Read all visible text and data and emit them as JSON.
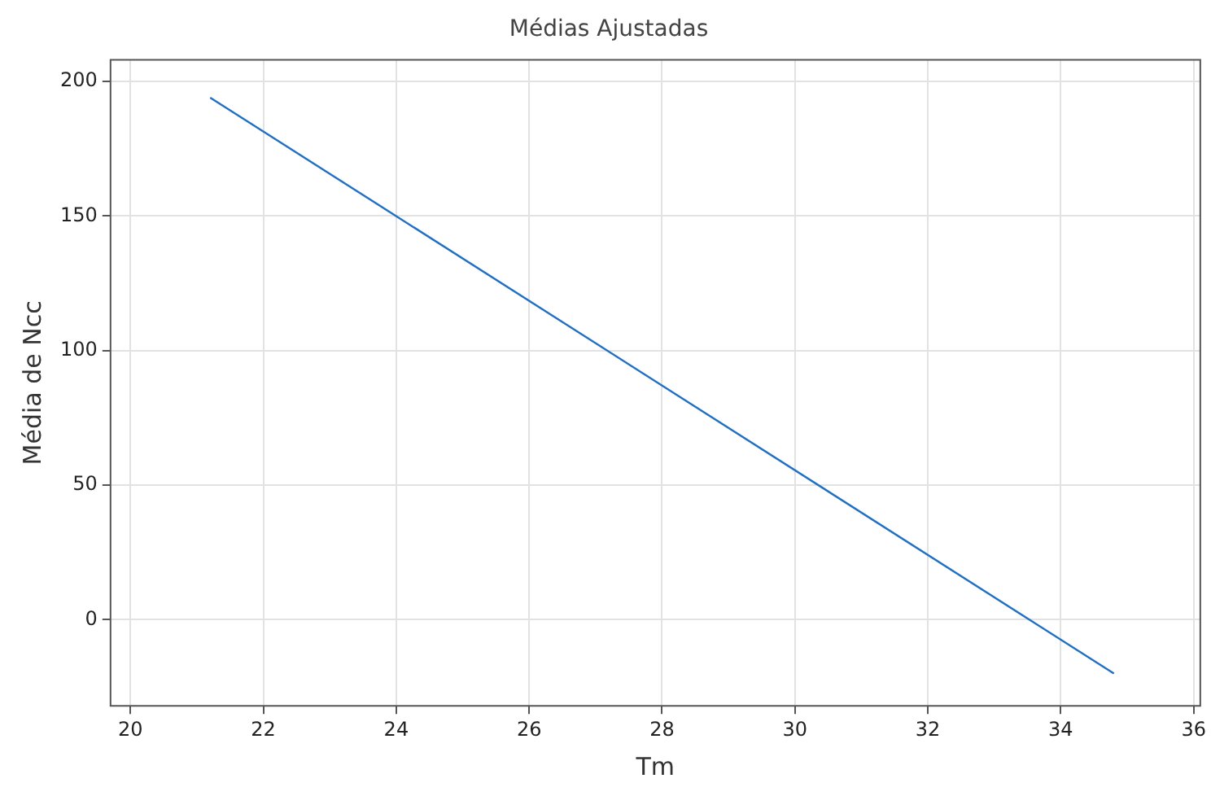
{
  "chart_data": {
    "type": "line",
    "title": "Médias Ajustadas",
    "xlabel": "Tm",
    "ylabel": "Média de Ncc",
    "series": [
      {
        "color": "#1f6fc5",
        "x": [
          21.2,
          34.8
        ],
        "values": [
          194,
          -20
        ]
      }
    ],
    "xlim": [
      19.7,
      36.1
    ],
    "xticks": [
      20,
      22,
      24,
      26,
      28,
      30,
      32,
      34,
      36
    ],
    "ylim": [
      -32,
      208
    ],
    "yticks": [
      0,
      50,
      100,
      150,
      200
    ],
    "grid": true,
    "legend": false,
    "marker": "none",
    "line_style": "solid"
  }
}
